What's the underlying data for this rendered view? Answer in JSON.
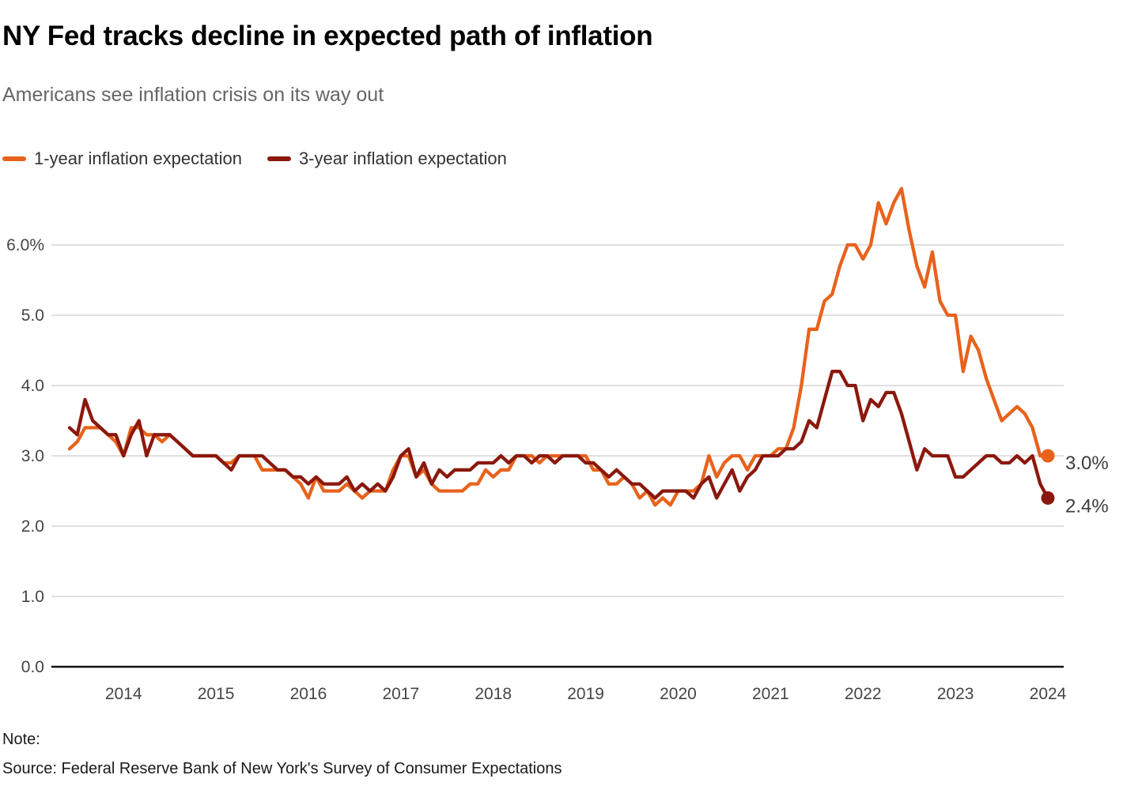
{
  "header": {
    "title": "NY Fed tracks decline in expected path of inflation",
    "subtitle": "Americans see inflation crisis on its way out"
  },
  "legend": {
    "items": [
      {
        "label": "1-year inflation expectation",
        "color": "#e8621c"
      },
      {
        "label": "3-year inflation expectation",
        "color": "#8b180d"
      }
    ]
  },
  "chart_data": {
    "type": "line",
    "title": "NY Fed tracks decline in expected path of inflation",
    "subtitle": "Americans see inflation crisis on its way out",
    "x_start": "2013-06",
    "x_end": "2024-01",
    "frequency": "monthly",
    "x_tick_labels": [
      "2014",
      "2015",
      "2016",
      "2017",
      "2018",
      "2019",
      "2020",
      "2021",
      "2022",
      "2023",
      "2024"
    ],
    "y_tick_labels": [
      "0.0",
      "1.0",
      "2.0",
      "3.0",
      "4.0",
      "5.0",
      "6.0%"
    ],
    "ylim": [
      0.0,
      6.9
    ],
    "grid": "horizontal",
    "legend_position": "top-left",
    "unit": "percent",
    "series": [
      {
        "name": "1-year inflation expectation",
        "color": "#e8621c",
        "end_label": "3.0%",
        "end_value": 3.0,
        "values": [
          3.1,
          3.2,
          3.4,
          3.4,
          3.4,
          3.3,
          3.2,
          3.0,
          3.4,
          3.4,
          3.3,
          3.3,
          3.2,
          3.3,
          3.2,
          3.1,
          3.0,
          3.0,
          3.0,
          3.0,
          2.9,
          2.9,
          3.0,
          3.0,
          3.0,
          2.8,
          2.8,
          2.8,
          2.8,
          2.7,
          2.6,
          2.4,
          2.7,
          2.5,
          2.5,
          2.5,
          2.6,
          2.5,
          2.4,
          2.5,
          2.5,
          2.5,
          2.8,
          3.0,
          3.0,
          2.7,
          2.8,
          2.6,
          2.5,
          2.5,
          2.5,
          2.5,
          2.6,
          2.6,
          2.8,
          2.7,
          2.8,
          2.8,
          3.0,
          3.0,
          3.0,
          2.9,
          3.0,
          3.0,
          3.0,
          3.0,
          3.0,
          3.0,
          2.8,
          2.8,
          2.6,
          2.6,
          2.7,
          2.6,
          2.4,
          2.5,
          2.3,
          2.4,
          2.3,
          2.5,
          2.5,
          2.5,
          2.6,
          3.0,
          2.7,
          2.9,
          3.0,
          3.0,
          2.8,
          3.0,
          3.0,
          3.0,
          3.1,
          3.1,
          3.4,
          4.0,
          4.8,
          4.8,
          5.2,
          5.3,
          5.7,
          6.0,
          6.0,
          5.8,
          6.0,
          6.6,
          6.3,
          6.6,
          6.8,
          6.2,
          5.7,
          5.4,
          5.9,
          5.2,
          5.0,
          5.0,
          4.2,
          4.7,
          4.5,
          4.1,
          3.8,
          3.5,
          3.6,
          3.7,
          3.6,
          3.4,
          3.0,
          3.0
        ]
      },
      {
        "name": "3-year inflation expectation",
        "color": "#8b180d",
        "end_label": "2.4%",
        "end_value": 2.4,
        "values": [
          3.4,
          3.3,
          3.8,
          3.5,
          3.4,
          3.3,
          3.3,
          3.0,
          3.3,
          3.5,
          3.0,
          3.3,
          3.3,
          3.3,
          3.2,
          3.1,
          3.0,
          3.0,
          3.0,
          3.0,
          2.9,
          2.8,
          3.0,
          3.0,
          3.0,
          3.0,
          2.9,
          2.8,
          2.8,
          2.7,
          2.7,
          2.6,
          2.7,
          2.6,
          2.6,
          2.6,
          2.7,
          2.5,
          2.6,
          2.5,
          2.6,
          2.5,
          2.7,
          3.0,
          3.1,
          2.7,
          2.9,
          2.6,
          2.8,
          2.7,
          2.8,
          2.8,
          2.8,
          2.9,
          2.9,
          2.9,
          3.0,
          2.9,
          3.0,
          3.0,
          2.9,
          3.0,
          3.0,
          2.9,
          3.0,
          3.0,
          3.0,
          2.9,
          2.9,
          2.8,
          2.7,
          2.8,
          2.7,
          2.6,
          2.6,
          2.5,
          2.4,
          2.5,
          2.5,
          2.5,
          2.5,
          2.4,
          2.6,
          2.7,
          2.4,
          2.6,
          2.8,
          2.5,
          2.7,
          2.8,
          3.0,
          3.0,
          3.0,
          3.1,
          3.1,
          3.2,
          3.5,
          3.4,
          3.8,
          4.2,
          4.2,
          4.0,
          4.0,
          3.5,
          3.8,
          3.7,
          3.9,
          3.9,
          3.6,
          3.2,
          2.8,
          3.1,
          3.0,
          3.0,
          3.0,
          2.7,
          2.7,
          2.8,
          2.9,
          3.0,
          3.0,
          2.9,
          2.9,
          3.0,
          2.9,
          3.0,
          2.6,
          2.4
        ]
      }
    ]
  },
  "footer": {
    "note": "Note:",
    "source": "Source: Federal Reserve Bank of New York's Survey of Consumer Expectations"
  }
}
